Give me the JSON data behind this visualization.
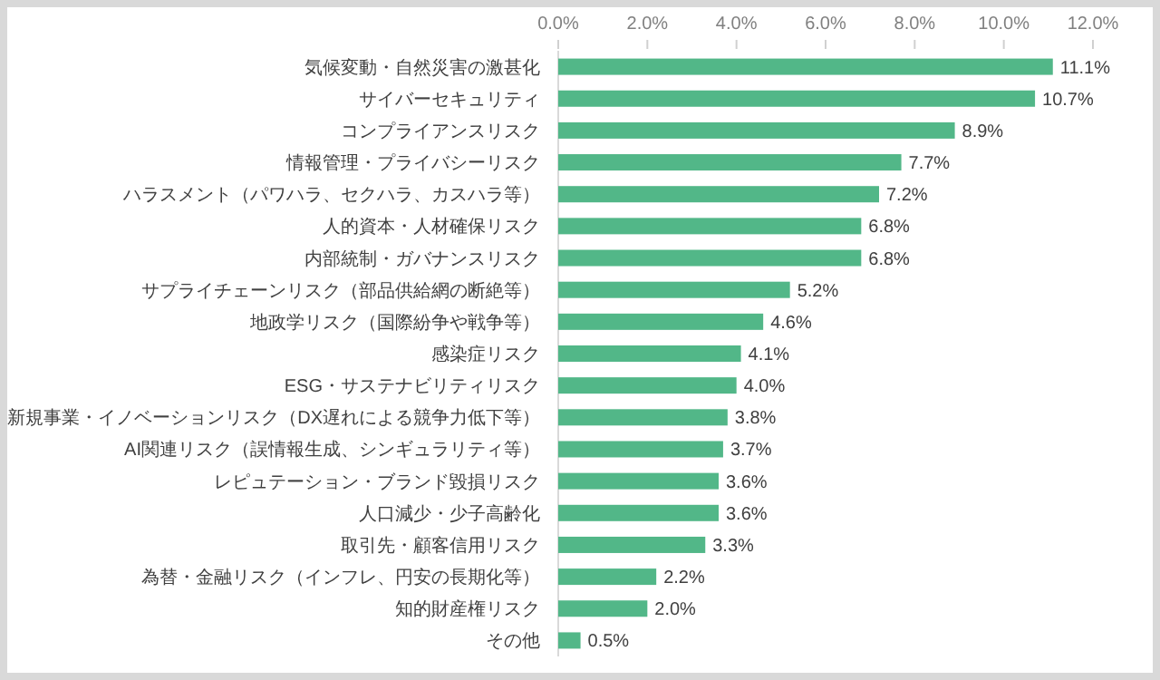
{
  "chart_data": {
    "type": "bar",
    "orientation": "horizontal",
    "color": "#52b788",
    "categories": [
      "気候変動・自然災害の激甚化",
      "サイバーセキュリティ",
      "コンプライアンスリスク",
      "情報管理・プライバシーリスク",
      "ハラスメント（パワハラ、セクハラ、カスハラ等）",
      "人的資本・人材確保リスク",
      "内部統制・ガバナンスリスク",
      "サプライチェーンリスク（部品供給網の断絶等）",
      "地政学リスク（国際紛争や戦争等）",
      "感染症リスク",
      "ESG・サステナビリティリスク",
      "新規事業・イノベーションリスク（DX遅れによる競争力低下等）",
      "AI関連リスク（誤情報生成、シンギュラリティ等）",
      "レピュテーション・ブランド毀損リスク",
      "人口減少・少子高齢化",
      "取引先・顧客信用リスク",
      "為替・金融リスク（インフレ、円安の長期化等）",
      "知的財産権リスク",
      "その他"
    ],
    "values": [
      11.1,
      10.7,
      8.9,
      7.7,
      7.2,
      6.8,
      6.8,
      5.2,
      4.6,
      4.1,
      4.0,
      3.8,
      3.7,
      3.6,
      3.6,
      3.3,
      2.2,
      2.0,
      0.5
    ],
    "value_labels": [
      "11.1%",
      "10.7%",
      "8.9%",
      "7.7%",
      "7.2%",
      "6.8%",
      "6.8%",
      "5.2%",
      "4.6%",
      "4.1%",
      "4.0%",
      "3.8%",
      "3.7%",
      "3.6%",
      "3.6%",
      "3.3%",
      "2.2%",
      "2.0%",
      "0.5%"
    ],
    "xlim": [
      0,
      12
    ],
    "xticks": [
      {
        "value": 0,
        "label": "0.0%"
      },
      {
        "value": 2,
        "label": "2.0%"
      },
      {
        "value": 4,
        "label": "4.0%"
      },
      {
        "value": 6,
        "label": "6.0%"
      },
      {
        "value": 8,
        "label": "8.0%"
      },
      {
        "value": 10,
        "label": "10.0%"
      },
      {
        "value": 12,
        "label": "12.0%"
      }
    ],
    "grid": false
  }
}
